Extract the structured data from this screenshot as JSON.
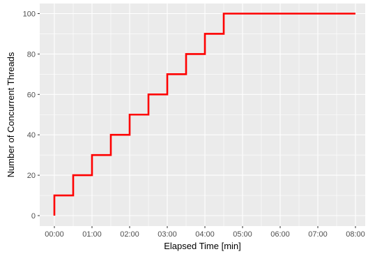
{
  "chart_data": {
    "type": "line",
    "step": true,
    "title": "",
    "xlabel": "Elapsed Time [min]",
    "ylabel": "Number of Concurrent Threads",
    "xlim": [
      0,
      8
    ],
    "ylim": [
      0,
      100
    ],
    "x_ticks": [
      {
        "value": 0,
        "label": "00:00"
      },
      {
        "value": 1,
        "label": "01:00"
      },
      {
        "value": 2,
        "label": "02:00"
      },
      {
        "value": 3,
        "label": "03:00"
      },
      {
        "value": 4,
        "label": "04:00"
      },
      {
        "value": 5,
        "label": "05:00"
      },
      {
        "value": 6,
        "label": "06:00"
      },
      {
        "value": 7,
        "label": "07:00"
      },
      {
        "value": 8,
        "label": "08:00"
      }
    ],
    "y_ticks": [
      {
        "value": 0,
        "label": "0"
      },
      {
        "value": 20,
        "label": "20"
      },
      {
        "value": 40,
        "label": "40"
      },
      {
        "value": 60,
        "label": "60"
      },
      {
        "value": 80,
        "label": "80"
      },
      {
        "value": 100,
        "label": "100"
      }
    ],
    "grid": true,
    "legend": "none",
    "series": [
      {
        "color": "#ff0000",
        "points": [
          {
            "x": 0,
            "y": 0
          },
          {
            "x": 0,
            "y": 10
          },
          {
            "x": 0.5,
            "y": 20
          },
          {
            "x": 1,
            "y": 30
          },
          {
            "x": 1.5,
            "y": 40
          },
          {
            "x": 2,
            "y": 50
          },
          {
            "x": 2.5,
            "y": 60
          },
          {
            "x": 3,
            "y": 70
          },
          {
            "x": 3.5,
            "y": 80
          },
          {
            "x": 4,
            "y": 90
          },
          {
            "x": 4.5,
            "y": 100
          },
          {
            "x": 8,
            "y": 100
          }
        ]
      }
    ],
    "colors": {
      "panel_background": "#ebebeb",
      "grid_major": "#ffffff",
      "line": "#ff0000"
    }
  }
}
